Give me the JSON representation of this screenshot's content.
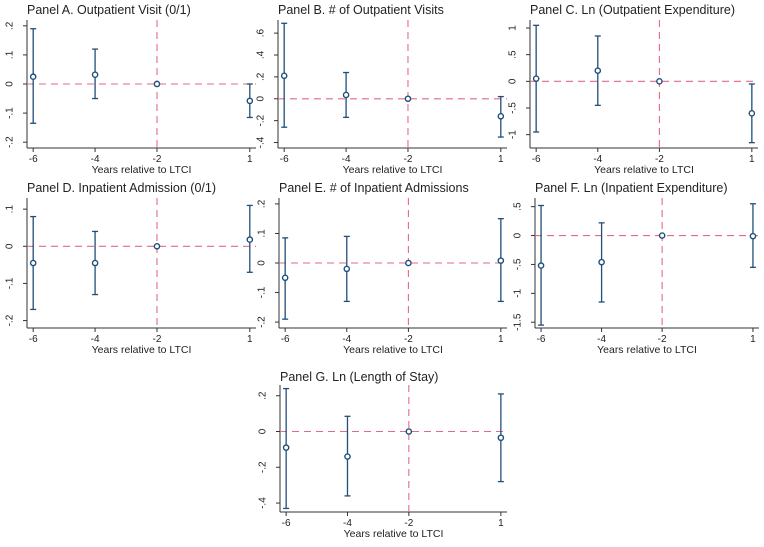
{
  "chart_data": [
    {
      "type": "scatter",
      "title": "Panel A. Outpatient Visit (0/1)",
      "xlabel": "Years relative to LTCI",
      "x_ticks": [
        "-6",
        "-4",
        "-2",
        "1"
      ],
      "y_ticks": [
        ".2",
        ".1",
        "0",
        "-.1",
        "-.2"
      ],
      "ylim": [
        -0.22,
        0.22
      ],
      "reference_x": "-2",
      "reference_y": 0,
      "series": [
        {
          "x": "-6",
          "y": 0.025,
          "ci": [
            -0.135,
            0.19
          ]
        },
        {
          "x": "-4",
          "y": 0.032,
          "ci": [
            -0.05,
            0.12
          ]
        },
        {
          "x": "-2",
          "y": 0.0,
          "ci": [
            0.0,
            0.0
          ]
        },
        {
          "x": "1",
          "y": -0.058,
          "ci": [
            -0.115,
            0.0
          ]
        }
      ]
    },
    {
      "type": "scatter",
      "title": "Panel B. # of Outpatient Visits",
      "xlabel": "Years relative to LTCI",
      "x_ticks": [
        "-6",
        "-4",
        "-2",
        "1"
      ],
      "y_ticks": [
        ".6",
        ".4",
        ".2",
        "0",
        "-.2",
        "-.4"
      ],
      "ylim": [
        -0.45,
        0.72
      ],
      "reference_x": "-2",
      "reference_y": 0,
      "series": [
        {
          "x": "-6",
          "y": 0.21,
          "ci": [
            -0.26,
            0.69
          ]
        },
        {
          "x": "-4",
          "y": 0.035,
          "ci": [
            -0.17,
            0.24
          ]
        },
        {
          "x": "-2",
          "y": 0.0,
          "ci": [
            0.0,
            0.0
          ]
        },
        {
          "x": "1",
          "y": -0.16,
          "ci": [
            -0.35,
            0.02
          ]
        }
      ]
    },
    {
      "type": "scatter",
      "title": "Panel C. Ln (Outpatient Expenditure)",
      "xlabel": "Years relative to LTCI",
      "x_ticks": [
        "-6",
        "-4",
        "-2",
        "1"
      ],
      "y_ticks": [
        "1",
        ".5",
        "0",
        "-.5",
        "-1"
      ],
      "ylim": [
        -1.25,
        1.15
      ],
      "reference_x": "-2",
      "reference_y": 0,
      "series": [
        {
          "x": "-6",
          "y": 0.05,
          "ci": [
            -0.95,
            1.05
          ]
        },
        {
          "x": "-4",
          "y": 0.2,
          "ci": [
            -0.45,
            0.85
          ]
        },
        {
          "x": "-2",
          "y": 0.0,
          "ci": [
            0.0,
            0.0
          ]
        },
        {
          "x": "1",
          "y": -0.6,
          "ci": [
            -1.15,
            -0.05
          ]
        }
      ]
    },
    {
      "type": "scatter",
      "title": "Panel D. Inpatient Admission (0/1)",
      "xlabel": "Years relative to LTCI",
      "x_ticks": [
        "-6",
        "-4",
        "-2",
        "1"
      ],
      "y_ticks": [
        ".1",
        "0",
        "-.1",
        "-.2"
      ],
      "ylim": [
        -0.22,
        0.13
      ],
      "reference_x": "-2",
      "reference_y": 0,
      "series": [
        {
          "x": "-6",
          "y": -0.045,
          "ci": [
            -0.17,
            0.08
          ]
        },
        {
          "x": "-4",
          "y": -0.045,
          "ci": [
            -0.13,
            0.04
          ]
        },
        {
          "x": "-2",
          "y": 0.0,
          "ci": [
            0.0,
            0.0
          ]
        },
        {
          "x": "1",
          "y": 0.018,
          "ci": [
            -0.07,
            0.11
          ]
        }
      ]
    },
    {
      "type": "scatter",
      "title": "Panel E. # of Inpatient Admissions",
      "xlabel": "Years relative to LTCI",
      "x_ticks": [
        "-6",
        "-4",
        "-2",
        "1"
      ],
      "y_ticks": [
        ".2",
        ".1",
        "0",
        "-.1",
        "-.2"
      ],
      "ylim": [
        -0.22,
        0.22
      ],
      "reference_x": "-2",
      "reference_y": 0,
      "series": [
        {
          "x": "-6",
          "y": -0.05,
          "ci": [
            -0.19,
            0.085
          ]
        },
        {
          "x": "-4",
          "y": -0.02,
          "ci": [
            -0.13,
            0.09
          ]
        },
        {
          "x": "-2",
          "y": 0.0,
          "ci": [
            0.0,
            0.0
          ]
        },
        {
          "x": "1",
          "y": 0.008,
          "ci": [
            -0.13,
            0.15
          ]
        }
      ]
    },
    {
      "type": "scatter",
      "title": "Panel F. Ln (Inpatient Expenditure)",
      "xlabel": "Years relative to LTCI",
      "x_ticks": [
        "-6",
        "-4",
        "-2",
        "1"
      ],
      "y_ticks": [
        ".5",
        "0",
        "-.5",
        "-1",
        "-1.5"
      ],
      "ylim": [
        -1.6,
        0.65
      ],
      "reference_x": "-2",
      "reference_y": 0,
      "series": [
        {
          "x": "-6",
          "y": -0.52,
          "ci": [
            -1.55,
            0.52
          ]
        },
        {
          "x": "-4",
          "y": -0.46,
          "ci": [
            -1.15,
            0.22
          ]
        },
        {
          "x": "-2",
          "y": 0.0,
          "ci": [
            0.0,
            0.0
          ]
        },
        {
          "x": "1",
          "y": -0.01,
          "ci": [
            -0.55,
            0.55
          ]
        }
      ]
    },
    {
      "type": "scatter",
      "title": "Panel G. Ln (Length of Stay)",
      "xlabel": "Years relative to LTCI",
      "x_ticks": [
        "-6",
        "-4",
        "-2",
        "1"
      ],
      "y_ticks": [
        ".2",
        "0",
        "-.2",
        "-.4"
      ],
      "ylim": [
        -0.45,
        0.26
      ],
      "reference_x": "-2",
      "reference_y": 0,
      "series": [
        {
          "x": "-6",
          "y": -0.09,
          "ci": [
            -0.43,
            0.24
          ]
        },
        {
          "x": "-4",
          "y": -0.14,
          "ci": [
            -0.36,
            0.085
          ]
        },
        {
          "x": "-2",
          "y": 0.0,
          "ci": [
            0.0,
            0.0
          ]
        },
        {
          "x": "1",
          "y": -0.035,
          "ci": [
            -0.28,
            0.21
          ]
        }
      ]
    }
  ],
  "colors": {
    "estimate": "#1f4e79",
    "reference_line": "#e26b86",
    "axis": "#333333",
    "background": "#ffffff"
  }
}
